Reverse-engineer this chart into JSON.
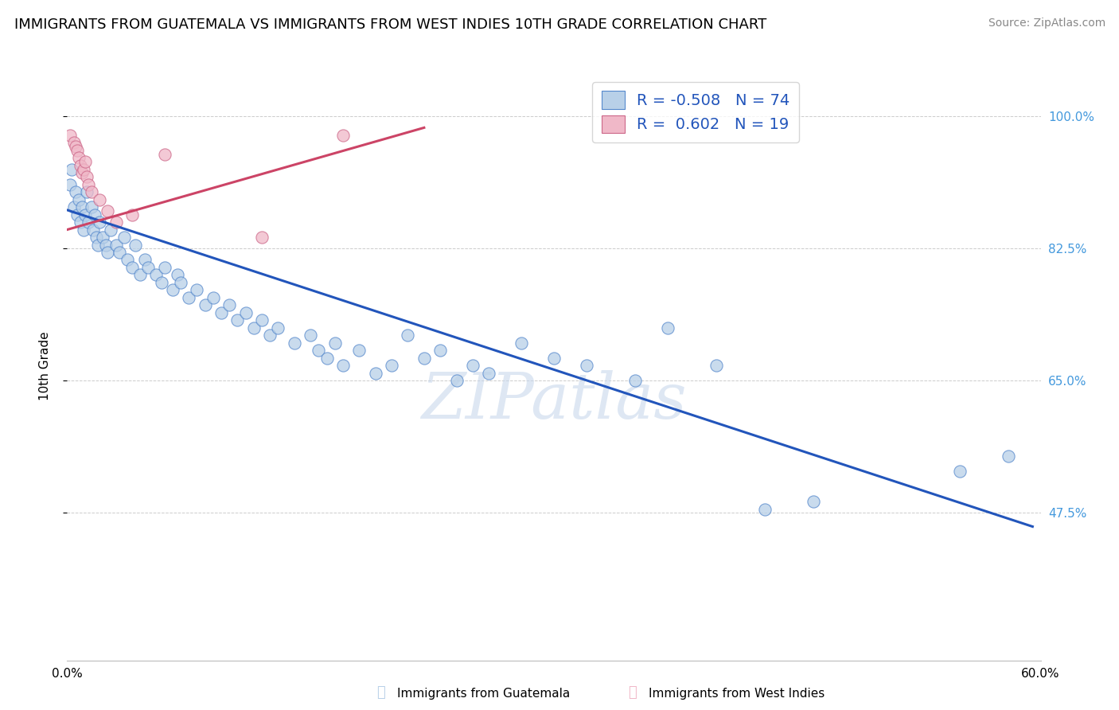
{
  "title": "IMMIGRANTS FROM GUATEMALA VS IMMIGRANTS FROM WEST INDIES 10TH GRADE CORRELATION CHART",
  "source": "Source: ZipAtlas.com",
  "ylabel": "10th Grade",
  "ytick_labels": [
    "100.0%",
    "82.5%",
    "65.0%",
    "47.5%"
  ],
  "ytick_values": [
    1.0,
    0.825,
    0.65,
    0.475
  ],
  "xlim": [
    0.0,
    0.6
  ],
  "ylim": [
    0.28,
    1.06
  ],
  "watermark": "ZIPatlas",
  "legend_blue_r": "-0.508",
  "legend_blue_n": "74",
  "legend_pink_r": "0.602",
  "legend_pink_n": "19",
  "blue_scatter_x": [
    0.002,
    0.003,
    0.004,
    0.005,
    0.006,
    0.007,
    0.008,
    0.009,
    0.01,
    0.011,
    0.012,
    0.013,
    0.015,
    0.016,
    0.017,
    0.018,
    0.019,
    0.02,
    0.022,
    0.024,
    0.025,
    0.027,
    0.03,
    0.032,
    0.035,
    0.037,
    0.04,
    0.042,
    0.045,
    0.048,
    0.05,
    0.055,
    0.058,
    0.06,
    0.065,
    0.068,
    0.07,
    0.075,
    0.08,
    0.085,
    0.09,
    0.095,
    0.1,
    0.105,
    0.11,
    0.115,
    0.12,
    0.125,
    0.13,
    0.14,
    0.15,
    0.155,
    0.16,
    0.165,
    0.17,
    0.18,
    0.19,
    0.2,
    0.21,
    0.22,
    0.23,
    0.24,
    0.25,
    0.26,
    0.28,
    0.3,
    0.32,
    0.35,
    0.37,
    0.4,
    0.43,
    0.46,
    0.55,
    0.58
  ],
  "blue_scatter_y": [
    0.91,
    0.93,
    0.88,
    0.9,
    0.87,
    0.89,
    0.86,
    0.88,
    0.85,
    0.87,
    0.9,
    0.86,
    0.88,
    0.85,
    0.87,
    0.84,
    0.83,
    0.86,
    0.84,
    0.83,
    0.82,
    0.85,
    0.83,
    0.82,
    0.84,
    0.81,
    0.8,
    0.83,
    0.79,
    0.81,
    0.8,
    0.79,
    0.78,
    0.8,
    0.77,
    0.79,
    0.78,
    0.76,
    0.77,
    0.75,
    0.76,
    0.74,
    0.75,
    0.73,
    0.74,
    0.72,
    0.73,
    0.71,
    0.72,
    0.7,
    0.71,
    0.69,
    0.68,
    0.7,
    0.67,
    0.69,
    0.66,
    0.67,
    0.71,
    0.68,
    0.69,
    0.65,
    0.67,
    0.66,
    0.7,
    0.68,
    0.67,
    0.65,
    0.72,
    0.67,
    0.48,
    0.49,
    0.53,
    0.55
  ],
  "pink_scatter_x": [
    0.002,
    0.004,
    0.005,
    0.006,
    0.007,
    0.008,
    0.009,
    0.01,
    0.011,
    0.012,
    0.013,
    0.015,
    0.02,
    0.025,
    0.03,
    0.04,
    0.06,
    0.12,
    0.17
  ],
  "pink_scatter_y": [
    0.975,
    0.965,
    0.96,
    0.955,
    0.945,
    0.935,
    0.925,
    0.93,
    0.94,
    0.92,
    0.91,
    0.9,
    0.89,
    0.875,
    0.86,
    0.87,
    0.95,
    0.84,
    0.975
  ],
  "blue_line_x": [
    0.0,
    0.595
  ],
  "blue_line_y": [
    0.876,
    0.457
  ],
  "pink_line_x": [
    0.0,
    0.22
  ],
  "pink_line_y": [
    0.85,
    0.985
  ],
  "blue_color": "#b8d0e8",
  "blue_edge_color": "#5588cc",
  "blue_line_color": "#2255bb",
  "pink_color": "#f0b8c8",
  "pink_edge_color": "#cc6688",
  "pink_line_color": "#cc4466",
  "grid_color": "#cccccc",
  "right_axis_color": "#4499dd",
  "title_fontsize": 13,
  "source_fontsize": 10,
  "watermark_fontsize": 58,
  "watermark_color": "#c8d8ec",
  "watermark_alpha": 0.6
}
